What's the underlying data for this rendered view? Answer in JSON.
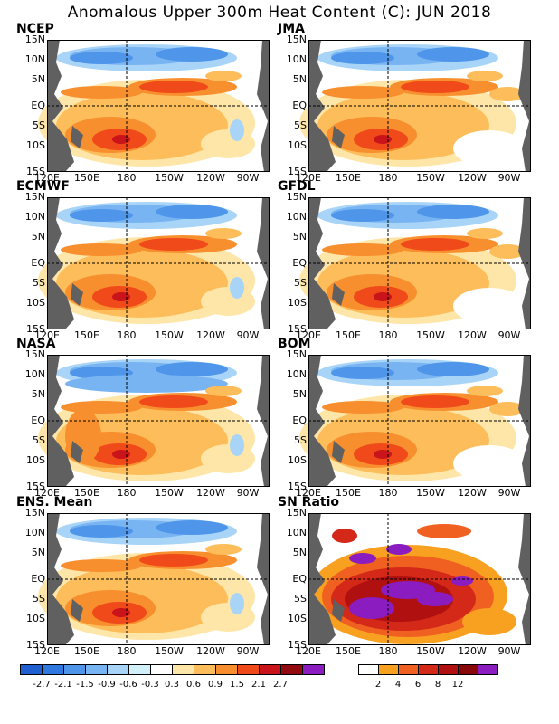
{
  "title": "Anomalous Upper 300m Heat Content (C): JUN 2018",
  "panels": [
    {
      "name": "NCEP"
    },
    {
      "name": "JMA"
    },
    {
      "name": "ECMWF"
    },
    {
      "name": "GFDL"
    },
    {
      "name": "NASA"
    },
    {
      "name": "BOM"
    },
    {
      "name": "ENS. Mean"
    },
    {
      "name": "SN Ratio"
    }
  ],
  "lat_labels": [
    "15N",
    "10N",
    "5N",
    "EQ",
    "5S",
    "10S",
    "15S"
  ],
  "lon_labels": [
    "120E",
    "150E",
    "180",
    "150W",
    "120W",
    "90W"
  ],
  "anomaly_colorbar": {
    "colors": [
      "#1f5fd0",
      "#2f78e0",
      "#4f96ea",
      "#78b4f2",
      "#a8d4f8",
      "#d0f0fa",
      "#ffffff",
      "#fde6a8",
      "#fcbd5a",
      "#f88f2e",
      "#f04a1a",
      "#c8141a",
      "#900a10",
      "#8a1cc0"
    ],
    "labels": [
      "-2.7",
      "-2.1",
      "-1.5",
      "-0.9",
      "-0.6",
      "-0.3",
      "0.3",
      "0.6",
      "0.9",
      "1.5",
      "2.1",
      "2.7"
    ]
  },
  "sn_colorbar": {
    "colors": [
      "#ffffff",
      "#f8a020",
      "#f06020",
      "#d42818",
      "#b01010",
      "#880808",
      "#8a1cc0"
    ],
    "labels": [
      "2",
      "4",
      "6",
      "8",
      "12"
    ]
  },
  "land_color": "#606060"
}
